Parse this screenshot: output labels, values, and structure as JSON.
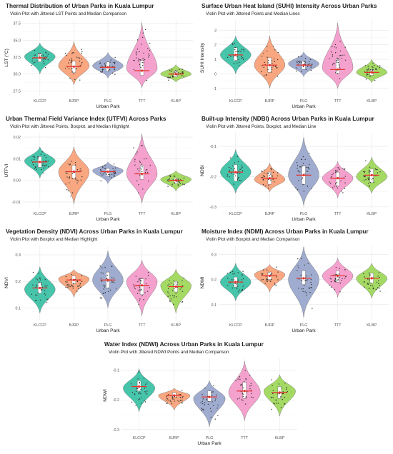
{
  "chart_data": [
    {
      "type": "violin",
      "title": "Thermal Distribution of Urban Parks in Kuala Lumpur",
      "subtitle": "Violin Plot with Jittered LST Points and Median Comparison",
      "xlabel": "Urban Park",
      "ylabel": "LST (°C)",
      "categories": [
        "KLCCP",
        "BJRP",
        "PLG",
        "TTT",
        "KLBP"
      ],
      "ylim": [
        26.8,
        38.0
      ],
      "yticks": [
        "27.5",
        "30.0",
        "32.5",
        "35.0",
        "37.5"
      ],
      "ytick_values": [
        27.5,
        30.0,
        32.5,
        35.0,
        37.5
      ],
      "medians": [
        32.4,
        31.1,
        31.0,
        30.5,
        30.0
      ],
      "q1": [
        31.8,
        30.2,
        30.4,
        29.8,
        29.6
      ],
      "q3": [
        33.1,
        31.9,
        31.8,
        32.0,
        30.5
      ],
      "ranges": [
        [
          30.0,
          34.6
        ],
        [
          28.4,
          34.8
        ],
        [
          29.4,
          33.2
        ],
        [
          28.0,
          37.6
        ],
        [
          28.8,
          31.4
        ]
      ],
      "modes": [
        32.6,
        31.2,
        31.2,
        30.8,
        30.0
      ],
      "show_box": true,
      "xlabel_centered": true
    },
    {
      "type": "violin",
      "title": "Surface Urban Heat Island (SUHI) Intensity Across Urban Parks",
      "subtitle": "Violin Plot with Jittered Points and Median Lines",
      "xlabel": "Urban Park",
      "ylabel": "SUHI Intensity",
      "categories": [
        "KLCCP",
        "BJRP",
        "PLG",
        "TTT",
        "KLBP"
      ],
      "ylim": [
        -1.5,
        3.7
      ],
      "yticks": [
        "-1",
        "0",
        "1",
        "2",
        "3"
      ],
      "ytick_values": [
        -1,
        0,
        1,
        2,
        3
      ],
      "medians": [
        1.3,
        0.6,
        0.6,
        0.3,
        0.1
      ],
      "q1": [
        0.9,
        0.1,
        0.3,
        0.0,
        -0.1
      ],
      "q3": [
        1.8,
        1.1,
        0.9,
        1.0,
        0.3
      ],
      "ranges": [
        [
          0.0,
          2.6
        ],
        [
          -1.0,
          2.6
        ],
        [
          -0.2,
          1.5
        ],
        [
          -1.0,
          3.5
        ],
        [
          -0.6,
          1.0
        ]
      ],
      "modes": [
        1.3,
        0.6,
        0.7,
        0.4,
        0.1
      ],
      "show_box": true,
      "xlabel_centered": true
    },
    {
      "type": "violin",
      "title": "Urban Thermal Field Variance Index (UTFVI) Across Parks",
      "subtitle": "Violin Plot with Jittered Points, Boxplot, and Median Highlight",
      "xlabel": "Urban Park",
      "ylabel": "UTFVI",
      "categories": [
        "KLCCP",
        "BJRP",
        "PLG",
        "TTT",
        "KLBP"
      ],
      "ylim": [
        -0.013,
        0.022
      ],
      "yticks": [
        "-0.01",
        "0.00",
        "0.01",
        "0.02"
      ],
      "ytick_values": [
        -0.01,
        0.0,
        0.01,
        0.02
      ],
      "medians": [
        0.0085,
        0.004,
        0.004,
        0.003,
        0.0
      ],
      "q1": [
        0.006,
        0.001,
        0.002,
        0.0005,
        -0.0015
      ],
      "q3": [
        0.011,
        0.007,
        0.0055,
        0.007,
        0.001
      ],
      "ranges": [
        [
          0.001,
          0.0155
        ],
        [
          -0.011,
          0.0155
        ],
        [
          -0.0015,
          0.0085
        ],
        [
          -0.0105,
          0.0215
        ],
        [
          -0.005,
          0.0045
        ]
      ],
      "modes": [
        0.009,
        0.004,
        0.0045,
        0.003,
        0.0005
      ],
      "show_box": true,
      "xlabel_centered": true
    },
    {
      "type": "violin",
      "title": "Built-up Intensity (NDBI) Across Urban Parks in Kuala Lumpur",
      "subtitle": "Violin Plot with Jittered Points, Boxplot, and Median Line",
      "xlabel": "Urban Park",
      "ylabel": "NDBI",
      "categories": [
        "KLCCP",
        "BJRP",
        "PLG",
        "TTT",
        "KLBP"
      ],
      "ylim": [
        -0.305,
        -0.055
      ],
      "yticks": [
        "-0.3",
        "-0.2",
        "-0.1"
      ],
      "ytick_values": [
        -0.3,
        -0.2,
        -0.1
      ],
      "medians": [
        -0.185,
        -0.205,
        -0.195,
        -0.205,
        -0.195
      ],
      "q1": [
        -0.215,
        -0.225,
        -0.225,
        -0.23,
        -0.22
      ],
      "q3": [
        -0.16,
        -0.185,
        -0.165,
        -0.185,
        -0.175
      ],
      "ranges": [
        [
          -0.255,
          -0.11
        ],
        [
          -0.25,
          -0.155
        ],
        [
          -0.295,
          -0.07
        ],
        [
          -0.27,
          -0.15
        ],
        [
          -0.255,
          -0.135
        ]
      ],
      "modes": [
        -0.185,
        -0.21,
        -0.195,
        -0.205,
        -0.2
      ],
      "show_box": true,
      "xlabel_centered": false
    },
    {
      "type": "violin",
      "title": "Vegetation Density (NDVI) Across Urban Parks in Kuala Lumpur",
      "subtitle": "Violin Plot with Boxplot and Median Highlight",
      "xlabel": "Urban Park",
      "ylabel": "NDVI",
      "categories": [
        "KLCCP",
        "BJRP",
        "PLG",
        "TTT",
        "KLBP"
      ],
      "ylim": [
        0.055,
        0.335
      ],
      "yticks": [
        "0.1",
        "0.2",
        "0.3"
      ],
      "ytick_values": [
        0.1,
        0.2,
        0.3
      ],
      "medians": [
        0.175,
        0.205,
        0.205,
        0.185,
        0.18
      ],
      "q1": [
        0.155,
        0.19,
        0.175,
        0.15,
        0.16
      ],
      "q3": [
        0.195,
        0.22,
        0.235,
        0.21,
        0.2
      ],
      "ranges": [
        [
          0.08,
          0.255
        ],
        [
          0.14,
          0.245
        ],
        [
          0.1,
          0.315
        ],
        [
          0.07,
          0.28
        ],
        [
          0.08,
          0.245
        ]
      ],
      "modes": [
        0.17,
        0.21,
        0.205,
        0.2,
        0.185
      ],
      "show_box": true,
      "xlabel_centered": false
    },
    {
      "type": "violin",
      "title": "Moisture Index (NDMI) Across Urban Parks in Kuala Lumpur",
      "subtitle": "Violin Plot with Boxplot and Median Comparison",
      "xlabel": "Urban Park",
      "ylabel": "NDMI",
      "categories": [
        "KLCCP",
        "BJRP",
        "PLG",
        "TTT",
        "KLBP"
      ],
      "ylim": [
        0.04,
        0.335
      ],
      "yticks": [
        "0.1",
        "0.2",
        "0.3"
      ],
      "ytick_values": [
        0.1,
        0.2,
        0.3
      ],
      "medians": [
        0.19,
        0.215,
        0.205,
        0.215,
        0.205
      ],
      "q1": [
        0.17,
        0.2,
        0.18,
        0.19,
        0.185
      ],
      "q3": [
        0.21,
        0.23,
        0.235,
        0.235,
        0.225
      ],
      "ranges": [
        [
          0.115,
          0.265
        ],
        [
          0.15,
          0.26
        ],
        [
          0.05,
          0.33
        ],
        [
          0.13,
          0.285
        ],
        [
          0.125,
          0.265
        ]
      ],
      "modes": [
        0.19,
        0.22,
        0.2,
        0.215,
        0.205
      ],
      "show_box": true,
      "xlabel_centered": false
    },
    {
      "type": "violin",
      "title": "Water Index (NDWI) Across Urban Parks in Kuala Lumpur",
      "subtitle": "Violin Plot with Jittered NDWI Points and Median Comparison",
      "xlabel": "Urban Park",
      "ylabel": "NDWI",
      "categories": [
        "KLCCP",
        "BJRP",
        "PLG",
        "TTT",
        "KLBP"
      ],
      "ylim": [
        -0.31,
        -0.06
      ],
      "yticks": [
        "-0.3",
        "-0.2",
        "-0.1"
      ],
      "ytick_values": [
        -0.3,
        -0.2,
        -0.1
      ],
      "medians": [
        -0.155,
        -0.185,
        -0.19,
        -0.17,
        -0.175
      ],
      "q1": [
        -0.17,
        -0.19,
        -0.205,
        -0.195,
        -0.195
      ],
      "q3": [
        -0.135,
        -0.175,
        -0.17,
        -0.14,
        -0.155
      ],
      "ranges": [
        [
          -0.24,
          -0.095
        ],
        [
          -0.235,
          -0.16
        ],
        [
          -0.29,
          -0.135
        ],
        [
          -0.27,
          -0.07
        ],
        [
          -0.255,
          -0.115
        ]
      ],
      "modes": [
        -0.16,
        -0.185,
        -0.195,
        -0.175,
        -0.17
      ],
      "show_box": true,
      "xlabel_centered": true
    }
  ],
  "colors": {
    "KLCCP": "#3cc2a6",
    "BJRP": "#f8a27a",
    "PLG": "#9aa8cc",
    "TTT": "#f49ccb",
    "KLBP": "#9fd85c",
    "median": "#e8302a",
    "points": "#333333",
    "grid": "#e5e5e5",
    "text": "#222222",
    "axis_text": "#555555"
  }
}
